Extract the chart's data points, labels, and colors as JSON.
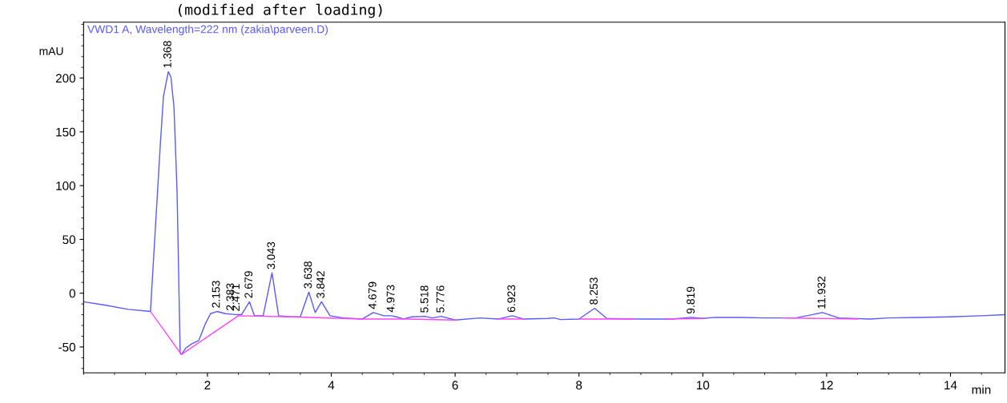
{
  "chart_data": {
    "type": "line",
    "title": "(modified after loading)",
    "subtitle": "VWD1 A, Wavelength=222 nm (zakia\\parveen.D)",
    "xlabel": "min",
    "ylabel": "mAU",
    "xlim": [
      0,
      14.88
    ],
    "xticks": [
      2,
      4,
      6,
      8,
      10,
      12,
      14
    ],
    "ylim": [
      -74,
      252
    ],
    "yticks": [
      -50,
      0,
      50,
      100,
      150,
      200
    ],
    "grid": false,
    "legend": false,
    "marker": "none",
    "line_style": "solid",
    "series": [
      {
        "color": "#5a5aff",
        "x": [
          0,
          0.34,
          0.72,
          1.08,
          1.24,
          1.29,
          1.368,
          1.41,
          1.46,
          1.51,
          1.56,
          1.58,
          1.65,
          1.75,
          1.86,
          1.97,
          2.05,
          2.153,
          2.29,
          2.383,
          2.471,
          2.55,
          2.679,
          2.76,
          2.9,
          3.043,
          3.15,
          3.35,
          3.5,
          3.638,
          3.74,
          3.842,
          3.98,
          4.2,
          4.5,
          4.679,
          4.85,
          4.973,
          5.05,
          5.17,
          5.3,
          5.518,
          5.63,
          5.776,
          6.0,
          6.4,
          6.7,
          6.923,
          7.1,
          7.5,
          7.6,
          7.7,
          8.0,
          8.253,
          8.45,
          9.0,
          9.5,
          9.819,
          10.0,
          10.2,
          10.6,
          11.0,
          11.5,
          11.932,
          12.2,
          12.7,
          13.0,
          13.5,
          14.0,
          14.5,
          14.88
        ],
        "values": [
          -8,
          -11,
          -15,
          -17,
          139,
          183,
          206,
          201,
          173,
          94,
          -56,
          -57,
          -51,
          -47,
          -44,
          -28,
          -19,
          -17,
          -19,
          -19.5,
          -20,
          -20,
          -8,
          -21,
          -21,
          19,
          -21,
          -22,
          -22,
          1,
          -18,
          -8,
          -21,
          -23,
          -24,
          -18,
          -21,
          -21,
          -22,
          -24,
          -22,
          -21.5,
          -23,
          -21.5,
          -25,
          -23,
          -24,
          -21,
          -24,
          -23.5,
          -23,
          -24.5,
          -24,
          -14,
          -23.5,
          -24,
          -24,
          -22.5,
          -23.5,
          -22.5,
          -22.5,
          -23,
          -23,
          -18,
          -23,
          -24,
          -23,
          -22.5,
          -22,
          -21,
          -20
        ]
      },
      {
        "color": "#ff44ff",
        "x": [
          1.08,
          1.58,
          2.5,
          3.35,
          4.5,
          5.2,
          6.0,
          6.3,
          6.7,
          7.1,
          7.5,
          8.0,
          8.9,
          9.2,
          9.4,
          10.0,
          10.5,
          11.3,
          12.5
        ],
        "values": [
          -17,
          -57,
          -21,
          -22,
          -24,
          -24,
          -25,
          null,
          -24,
          -24,
          null,
          -24,
          -24,
          null,
          -24,
          -23.5,
          null,
          -23,
          -24
        ]
      }
    ],
    "annotations": [
      {
        "text": "1.368",
        "x": 1.368,
        "y": 206
      },
      {
        "text": "2.153",
        "x": 2.153,
        "y": -17
      },
      {
        "text": "2.383",
        "x": 2.383,
        "y": -19.5
      },
      {
        "text": "2.471",
        "x": 2.471,
        "y": -20
      },
      {
        "text": "2.679",
        "x": 2.679,
        "y": -8
      },
      {
        "text": "3.043",
        "x": 3.043,
        "y": 19
      },
      {
        "text": "3.638",
        "x": 3.638,
        "y": 1
      },
      {
        "text": "3.842",
        "x": 3.842,
        "y": -8
      },
      {
        "text": "4.679",
        "x": 4.679,
        "y": -18
      },
      {
        "text": "4.973",
        "x": 4.973,
        "y": -21
      },
      {
        "text": "5.518",
        "x": 5.518,
        "y": -21.5
      },
      {
        "text": "5.776",
        "x": 5.776,
        "y": -21.5
      },
      {
        "text": "6.923",
        "x": 6.923,
        "y": -21
      },
      {
        "text": "8.253",
        "x": 8.253,
        "y": -14
      },
      {
        "text": "9.819",
        "x": 9.819,
        "y": -22.5
      },
      {
        "text": "11.932",
        "x": 11.932,
        "y": -18
      }
    ]
  }
}
